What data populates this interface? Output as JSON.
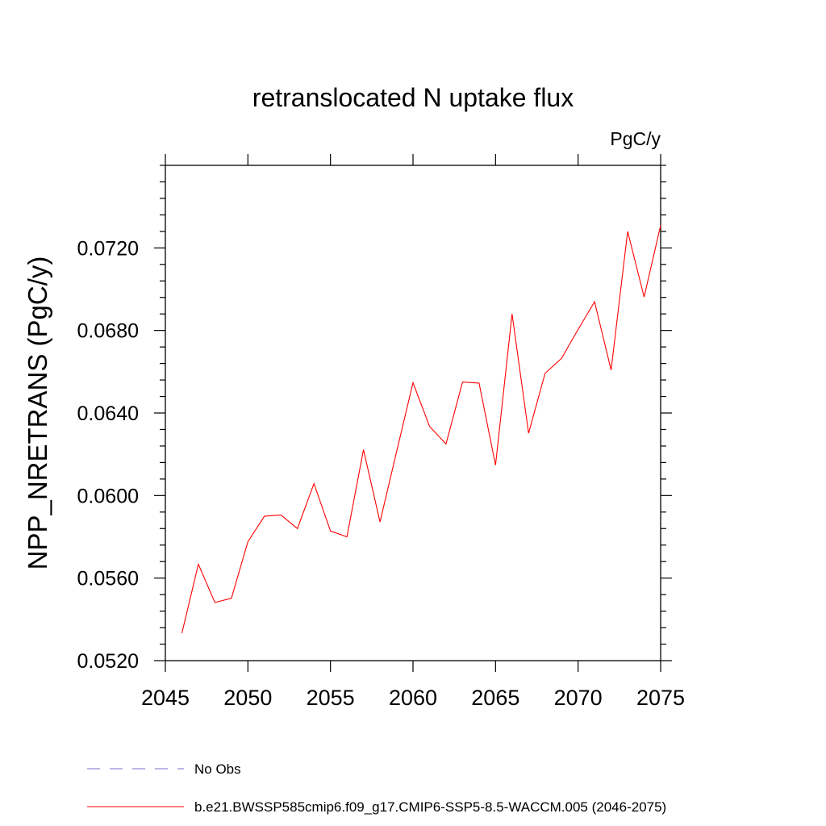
{
  "chart_data": {
    "type": "line",
    "title": "retranslocated N uptake flux",
    "units_label": "PgC/y",
    "ylabel": "NPP_NRETRANS  (PgC/y)",
    "xlabel": "",
    "xlim": [
      2045,
      2075
    ],
    "ylim": [
      0.052,
      0.076
    ],
    "x_ticks": [
      2045,
      2050,
      2055,
      2060,
      2065,
      2070,
      2075
    ],
    "x_tick_labels": [
      "2045",
      "2050",
      "2055",
      "2060",
      "2065",
      "2070",
      "2075"
    ],
    "y_ticks": [
      0.052,
      0.056,
      0.06,
      0.064,
      0.068,
      0.072
    ],
    "y_tick_labels": [
      "0.0520",
      "0.0560",
      "0.0600",
      "0.0640",
      "0.0680",
      "0.0720"
    ],
    "grid": false,
    "legend_position": "bottom",
    "series": [
      {
        "name": "b.e21.BWSSP585cmip6.f09_g17.CMIP6-SSP5-8.5-WACCM.005 (2046-2075)",
        "color": "#ff0000",
        "dash": "solid",
        "x": [
          2046,
          2047,
          2048,
          2049,
          2050,
          2051,
          2052,
          2053,
          2054,
          2055,
          2056,
          2057,
          2058,
          2059,
          2060,
          2061,
          2062,
          2063,
          2064,
          2065,
          2066,
          2067,
          2068,
          2069,
          2070,
          2071,
          2072,
          2073,
          2074,
          2075
        ],
        "values": [
          0.05333,
          0.05667,
          0.05482,
          0.05502,
          0.05776,
          0.059,
          0.05906,
          0.0584,
          0.06058,
          0.05828,
          0.058,
          0.06222,
          0.05872,
          0.0621,
          0.06547,
          0.06335,
          0.0625,
          0.0655,
          0.06545,
          0.06147,
          0.0688,
          0.06302,
          0.06592,
          0.06665,
          0.06805,
          0.06939,
          0.06608,
          0.0728,
          0.06962,
          0.0731
        ]
      }
    ],
    "legend": [
      {
        "label": "No Obs",
        "color": "#7b6fc9",
        "dash": "dashed"
      },
      {
        "label": "b.e21.BWSSP585cmip6.f09_g17.CMIP6-SSP5-8.5-WACCM.005 (2046-2075)",
        "color": "#ff0000",
        "dash": "solid"
      }
    ]
  }
}
